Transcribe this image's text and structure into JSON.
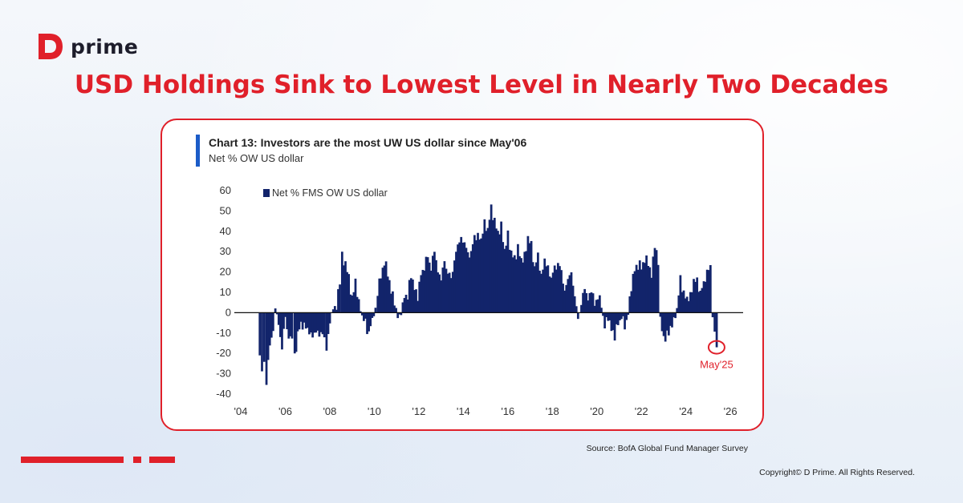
{
  "brand": {
    "name": "prime",
    "accent_color": "#e0202a"
  },
  "headline": "USD Holdings Sink to Lowest Level in Nearly Two Decades",
  "source": "Source: BofA Global Fund Manager Survey",
  "copyright": "Copyright© D Prime. All Rights Reserved.",
  "chart_data": {
    "type": "bar",
    "title": "Chart 13: Investors are the most UW US dollar since May'06",
    "subtitle": "Net % OW US dollar",
    "legend": "Net % FMS OW US dollar",
    "legend_position": "top-left",
    "series_color": "#12246b",
    "annotation": {
      "label": "May'25",
      "x": 2025.38,
      "y": -17
    },
    "xlim": [
      2004,
      2026.5
    ],
    "ylim": [
      -40,
      60
    ],
    "yticks": [
      60,
      50,
      40,
      30,
      20,
      10,
      0,
      -10,
      -20,
      -30,
      -40
    ],
    "xticks": [
      {
        "value": 2004,
        "label": "'04"
      },
      {
        "value": 2006,
        "label": "'06"
      },
      {
        "value": 2008,
        "label": "'08"
      },
      {
        "value": 2010,
        "label": "'10"
      },
      {
        "value": 2012,
        "label": "'12"
      },
      {
        "value": 2014,
        "label": "'14"
      },
      {
        "value": 2016,
        "label": "'16"
      },
      {
        "value": 2018,
        "label": "'18"
      },
      {
        "value": 2020,
        "label": "'20"
      },
      {
        "value": 2022,
        "label": "'22"
      },
      {
        "value": 2024,
        "label": "'24"
      },
      {
        "value": 2026,
        "label": "'26"
      }
    ],
    "anchors": [
      [
        2004.85,
        -22
      ],
      [
        2004.95,
        -28
      ],
      [
        2005.05,
        -25
      ],
      [
        2005.15,
        -35
      ],
      [
        2005.3,
        -18
      ],
      [
        2005.45,
        -8
      ],
      [
        2005.55,
        3
      ],
      [
        2005.7,
        -5
      ],
      [
        2005.85,
        -15
      ],
      [
        2006.0,
        -2
      ],
      [
        2006.15,
        -10
      ],
      [
        2006.3,
        -12
      ],
      [
        2006.42,
        -22
      ],
      [
        2006.55,
        -10
      ],
      [
        2006.7,
        -8
      ],
      [
        2006.85,
        -6
      ],
      [
        2007.0,
        -10
      ],
      [
        2007.15,
        -12
      ],
      [
        2007.3,
        -11
      ],
      [
        2007.45,
        -12
      ],
      [
        2007.6,
        -10
      ],
      [
        2007.75,
        -15
      ],
      [
        2007.85,
        -17
      ],
      [
        2008.0,
        -4
      ],
      [
        2008.15,
        2
      ],
      [
        2008.3,
        5
      ],
      [
        2008.45,
        15
      ],
      [
        2008.55,
        28
      ],
      [
        2008.7,
        25
      ],
      [
        2008.85,
        16
      ],
      [
        2009.0,
        8
      ],
      [
        2009.15,
        14
      ],
      [
        2009.3,
        5
      ],
      [
        2009.45,
        -2
      ],
      [
        2009.6,
        -6
      ],
      [
        2009.75,
        -10
      ],
      [
        2009.9,
        -4
      ],
      [
        2010.05,
        2
      ],
      [
        2010.15,
        10
      ],
      [
        2010.3,
        17
      ],
      [
        2010.45,
        26
      ],
      [
        2010.6,
        18
      ],
      [
        2010.75,
        12
      ],
      [
        2010.9,
        5
      ],
      [
        2011.05,
        -2
      ],
      [
        2011.2,
        0
      ],
      [
        2011.35,
        8
      ],
      [
        2011.5,
        10
      ],
      [
        2011.65,
        18
      ],
      [
        2011.8,
        14
      ],
      [
        2011.95,
        8
      ],
      [
        2012.1,
        20
      ],
      [
        2012.25,
        24
      ],
      [
        2012.4,
        28
      ],
      [
        2012.55,
        24
      ],
      [
        2012.7,
        31
      ],
      [
        2012.85,
        22
      ],
      [
        2013.0,
        18
      ],
      [
        2013.15,
        26
      ],
      [
        2013.3,
        22
      ],
      [
        2013.45,
        17
      ],
      [
        2013.6,
        28
      ],
      [
        2013.75,
        34
      ],
      [
        2013.9,
        38
      ],
      [
        2014.05,
        36
      ],
      [
        2014.2,
        29
      ],
      [
        2014.35,
        32
      ],
      [
        2014.5,
        37
      ],
      [
        2014.65,
        40
      ],
      [
        2014.8,
        36
      ],
      [
        2014.95,
        45
      ],
      [
        2015.1,
        42
      ],
      [
        2015.25,
        51
      ],
      [
        2015.4,
        47
      ],
      [
        2015.55,
        38
      ],
      [
        2015.7,
        44
      ],
      [
        2015.85,
        30
      ],
      [
        2016.0,
        38
      ],
      [
        2016.15,
        30
      ],
      [
        2016.3,
        25
      ],
      [
        2016.45,
        33
      ],
      [
        2016.6,
        24
      ],
      [
        2016.75,
        28
      ],
      [
        2016.9,
        36
      ],
      [
        2017.05,
        32
      ],
      [
        2017.2,
        22
      ],
      [
        2017.35,
        26
      ],
      [
        2017.5,
        18
      ],
      [
        2017.65,
        24
      ],
      [
        2017.8,
        21
      ],
      [
        2017.95,
        16
      ],
      [
        2018.1,
        20
      ],
      [
        2018.25,
        24
      ],
      [
        2018.4,
        18
      ],
      [
        2018.55,
        10
      ],
      [
        2018.7,
        15
      ],
      [
        2018.85,
        18
      ],
      [
        2019.0,
        8
      ],
      [
        2019.15,
        -4
      ],
      [
        2019.3,
        4
      ],
      [
        2019.45,
        10
      ],
      [
        2019.6,
        6
      ],
      [
        2019.75,
        10
      ],
      [
        2019.9,
        3
      ],
      [
        2020.05,
        8
      ],
      [
        2020.2,
        2
      ],
      [
        2020.35,
        -6
      ],
      [
        2020.5,
        -4
      ],
      [
        2020.65,
        -8
      ],
      [
        2020.8,
        -12
      ],
      [
        2020.95,
        -6
      ],
      [
        2021.1,
        -2
      ],
      [
        2021.25,
        -8
      ],
      [
        2021.4,
        0
      ],
      [
        2021.55,
        12
      ],
      [
        2021.7,
        22
      ],
      [
        2021.85,
        24
      ],
      [
        2022.0,
        22
      ],
      [
        2022.15,
        28
      ],
      [
        2022.3,
        24
      ],
      [
        2022.45,
        20
      ],
      [
        2022.6,
        34
      ],
      [
        2022.75,
        25
      ],
      [
        2022.85,
        -2
      ],
      [
        2023.0,
        -14
      ],
      [
        2023.15,
        -10
      ],
      [
        2023.3,
        -8
      ],
      [
        2023.45,
        -5
      ],
      [
        2023.6,
        2
      ],
      [
        2023.75,
        15
      ],
      [
        2023.9,
        10
      ],
      [
        2024.05,
        5
      ],
      [
        2024.2,
        8
      ],
      [
        2024.35,
        15
      ],
      [
        2024.5,
        14
      ],
      [
        2024.65,
        10
      ],
      [
        2024.8,
        12
      ],
      [
        2024.95,
        20
      ],
      [
        2025.1,
        21
      ],
      [
        2025.2,
        -2
      ],
      [
        2025.38,
        -17
      ]
    ]
  }
}
